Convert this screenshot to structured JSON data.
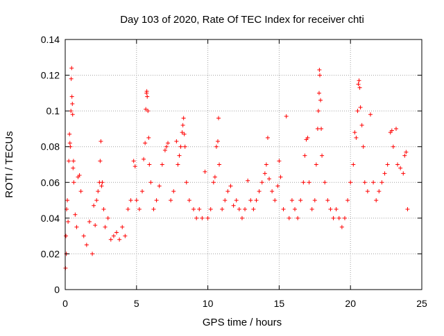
{
  "chart_data": {
    "type": "scatter",
    "title": "Day 103 of 2020, Rate Of TEC Index for receiver chti",
    "xlabel": "GPS time / hours",
    "ylabel": "ROTI / TECUs",
    "xlim": [
      0,
      25
    ],
    "ylim": [
      0,
      0.14
    ],
    "x_ticks": [
      "0",
      "5",
      "10",
      "15",
      "20",
      "25"
    ],
    "y_ticks": [
      "0",
      "0.02",
      "0.04",
      "0.06",
      "0.08",
      "0.1",
      "0.12",
      "0.14"
    ],
    "grid": true,
    "marker": "+",
    "color": "#ff0000",
    "series": [
      {
        "points": [
          [
            0.02,
            0.012
          ],
          [
            0.05,
            0.03
          ],
          [
            0.08,
            0.02
          ],
          [
            0.1,
            0.045
          ],
          [
            0.15,
            0.05
          ],
          [
            0.2,
            0.038
          ],
          [
            0.25,
            0.072
          ],
          [
            0.3,
            0.087
          ],
          [
            0.33,
            0.082
          ],
          [
            0.36,
            0.08
          ],
          [
            0.4,
            0.1
          ],
          [
            0.42,
            0.118
          ],
          [
            0.45,
            0.124
          ],
          [
            0.47,
            0.108
          ],
          [
            0.5,
            0.104
          ],
          [
            0.52,
            0.098
          ],
          [
            0.55,
            0.068
          ],
          [
            0.58,
            0.072
          ],
          [
            0.6,
            0.06
          ],
          [
            0.7,
            0.042
          ],
          [
            0.8,
            0.035
          ],
          [
            0.9,
            0.063
          ],
          [
            1.0,
            0.064
          ],
          [
            1.1,
            0.055
          ],
          [
            1.3,
            0.03
          ],
          [
            1.5,
            0.025
          ],
          [
            1.7,
            0.038
          ],
          [
            1.9,
            0.02
          ],
          [
            2.0,
            0.047
          ],
          [
            2.1,
            0.036
          ],
          [
            2.2,
            0.05
          ],
          [
            2.3,
            0.055
          ],
          [
            2.4,
            0.06
          ],
          [
            2.45,
            0.072
          ],
          [
            2.5,
            0.083
          ],
          [
            2.55,
            0.058
          ],
          [
            2.6,
            0.06
          ],
          [
            2.7,
            0.045
          ],
          [
            2.8,
            0.035
          ],
          [
            3.0,
            0.04
          ],
          [
            3.2,
            0.028
          ],
          [
            3.4,
            0.03
          ],
          [
            3.6,
            0.032
          ],
          [
            3.8,
            0.028
          ],
          [
            4.0,
            0.035
          ],
          [
            4.2,
            0.03
          ],
          [
            4.4,
            0.045
          ],
          [
            4.6,
            0.05
          ],
          [
            4.8,
            0.072
          ],
          [
            4.9,
            0.069
          ],
          [
            5.0,
            0.05
          ],
          [
            5.2,
            0.045
          ],
          [
            5.4,
            0.055
          ],
          [
            5.5,
            0.073
          ],
          [
            5.6,
            0.082
          ],
          [
            5.65,
            0.101
          ],
          [
            5.7,
            0.11
          ],
          [
            5.72,
            0.111
          ],
          [
            5.75,
            0.108
          ],
          [
            5.8,
            0.1
          ],
          [
            5.85,
            0.085
          ],
          [
            5.9,
            0.07
          ],
          [
            6.0,
            0.06
          ],
          [
            6.2,
            0.045
          ],
          [
            6.4,
            0.05
          ],
          [
            6.6,
            0.058
          ],
          [
            6.8,
            0.07
          ],
          [
            7.0,
            0.078
          ],
          [
            7.1,
            0.08
          ],
          [
            7.2,
            0.082
          ],
          [
            7.4,
            0.05
          ],
          [
            7.6,
            0.055
          ],
          [
            7.8,
            0.083
          ],
          [
            7.9,
            0.07
          ],
          [
            8.0,
            0.075
          ],
          [
            8.1,
            0.08
          ],
          [
            8.2,
            0.088
          ],
          [
            8.25,
            0.092
          ],
          [
            8.3,
            0.096
          ],
          [
            8.35,
            0.087
          ],
          [
            8.4,
            0.08
          ],
          [
            8.5,
            0.06
          ],
          [
            8.7,
            0.05
          ],
          [
            9.0,
            0.045
          ],
          [
            9.2,
            0.04
          ],
          [
            9.4,
            0.045
          ],
          [
            9.6,
            0.04
          ],
          [
            9.8,
            0.066
          ],
          [
            10.0,
            0.04
          ],
          [
            10.2,
            0.045
          ],
          [
            10.4,
            0.06
          ],
          [
            10.5,
            0.063
          ],
          [
            10.6,
            0.08
          ],
          [
            10.7,
            0.083
          ],
          [
            10.75,
            0.096
          ],
          [
            10.8,
            0.07
          ],
          [
            11.0,
            0.045
          ],
          [
            11.2,
            0.05
          ],
          [
            11.4,
            0.055
          ],
          [
            11.6,
            0.058
          ],
          [
            11.8,
            0.047
          ],
          [
            12.0,
            0.05
          ],
          [
            12.2,
            0.045
          ],
          [
            12.4,
            0.04
          ],
          [
            12.6,
            0.045
          ],
          [
            12.8,
            0.061
          ],
          [
            13.0,
            0.05
          ],
          [
            13.2,
            0.045
          ],
          [
            13.4,
            0.05
          ],
          [
            13.6,
            0.055
          ],
          [
            13.8,
            0.06
          ],
          [
            14.0,
            0.065
          ],
          [
            14.1,
            0.07
          ],
          [
            14.2,
            0.085
          ],
          [
            14.3,
            0.062
          ],
          [
            14.5,
            0.055
          ],
          [
            14.7,
            0.05
          ],
          [
            14.9,
            0.058
          ],
          [
            15.0,
            0.072
          ],
          [
            15.1,
            0.063
          ],
          [
            15.3,
            0.045
          ],
          [
            15.5,
            0.097
          ],
          [
            15.7,
            0.04
          ],
          [
            15.9,
            0.05
          ],
          [
            16.1,
            0.045
          ],
          [
            16.3,
            0.04
          ],
          [
            16.5,
            0.05
          ],
          [
            16.7,
            0.06
          ],
          [
            16.8,
            0.075
          ],
          [
            16.9,
            0.084
          ],
          [
            17.0,
            0.085
          ],
          [
            17.1,
            0.06
          ],
          [
            17.3,
            0.045
          ],
          [
            17.5,
            0.05
          ],
          [
            17.6,
            0.07
          ],
          [
            17.7,
            0.09
          ],
          [
            17.75,
            0.1
          ],
          [
            17.8,
            0.11
          ],
          [
            17.82,
            0.123
          ],
          [
            17.85,
            0.12
          ],
          [
            17.9,
            0.106
          ],
          [
            17.95,
            0.09
          ],
          [
            18.0,
            0.075
          ],
          [
            18.2,
            0.06
          ],
          [
            18.4,
            0.05
          ],
          [
            18.6,
            0.045
          ],
          [
            18.8,
            0.04
          ],
          [
            19.0,
            0.045
          ],
          [
            19.2,
            0.04
          ],
          [
            19.4,
            0.035
          ],
          [
            19.6,
            0.04
          ],
          [
            19.8,
            0.05
          ],
          [
            20.0,
            0.06
          ],
          [
            20.2,
            0.07
          ],
          [
            20.3,
            0.088
          ],
          [
            20.4,
            0.085
          ],
          [
            20.5,
            0.1
          ],
          [
            20.55,
            0.115
          ],
          [
            20.6,
            0.117
          ],
          [
            20.65,
            0.113
          ],
          [
            20.7,
            0.102
          ],
          [
            20.8,
            0.092
          ],
          [
            20.9,
            0.08
          ],
          [
            21.0,
            0.06
          ],
          [
            21.2,
            0.055
          ],
          [
            21.4,
            0.098
          ],
          [
            21.6,
            0.06
          ],
          [
            21.8,
            0.05
          ],
          [
            22.0,
            0.055
          ],
          [
            22.2,
            0.06
          ],
          [
            22.4,
            0.065
          ],
          [
            22.6,
            0.07
          ],
          [
            22.8,
            0.088
          ],
          [
            22.9,
            0.089
          ],
          [
            23.0,
            0.08
          ],
          [
            23.2,
            0.09
          ],
          [
            23.3,
            0.07
          ],
          [
            23.5,
            0.068
          ],
          [
            23.7,
            0.065
          ],
          [
            23.8,
            0.075
          ],
          [
            23.9,
            0.077
          ],
          [
            24.0,
            0.045
          ]
        ]
      }
    ]
  }
}
